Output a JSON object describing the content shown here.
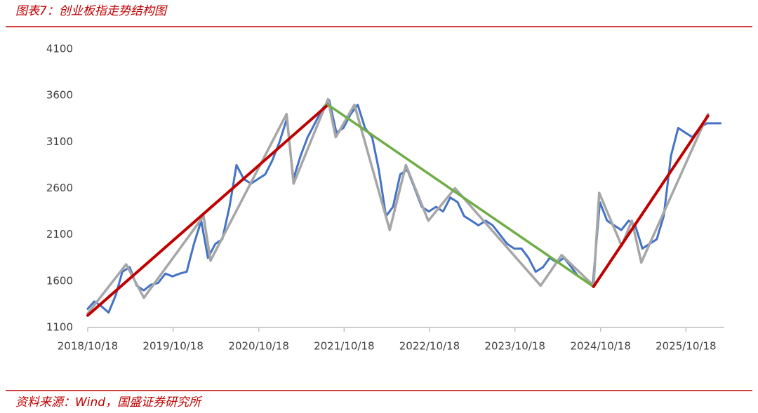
{
  "chart_data": {
    "type": "line",
    "title": "图表7：创业板指走势结构图",
    "source": "资料来源：Wind，国盛证券研究所",
    "xlim": [
      "2018/10/18",
      "2026/03/31"
    ],
    "xticks": [
      "2018/10/18",
      "2019/10/18",
      "2020/10/18",
      "2021/10/18",
      "2022/10/18",
      "2023/10/18",
      "2024/10/18",
      "2025/10/18"
    ],
    "ylim": [
      1100,
      4100
    ],
    "yticks": [
      1100,
      1600,
      2100,
      2600,
      3100,
      3600,
      4100
    ],
    "grid": false,
    "series": [
      {
        "color": "#4472c4",
        "width": 3,
        "x": [
          "2018/10/18",
          "2018/11/15",
          "2018/12/15",
          "2019/01/15",
          "2019/02/15",
          "2019/03/15",
          "2019/04/15",
          "2019/05/15",
          "2019/06/15",
          "2019/07/15",
          "2019/08/15",
          "2019/09/15",
          "2019/10/15",
          "2019/11/15",
          "2019/12/15",
          "2020/01/15",
          "2020/02/15",
          "2020/03/15",
          "2020/04/15",
          "2020/05/15",
          "2020/06/15",
          "2020/07/15",
          "2020/08/15",
          "2020/09/15",
          "2020/10/15",
          "2020/11/15",
          "2020/12/15",
          "2021/01/15",
          "2021/02/15",
          "2021/03/15",
          "2021/04/15",
          "2021/05/15",
          "2021/06/15",
          "2021/07/15",
          "2021/08/15",
          "2021/09/15",
          "2021/10/15",
          "2021/11/15",
          "2021/12/15",
          "2022/01/15",
          "2022/02/15",
          "2022/03/15",
          "2022/04/15",
          "2022/05/15",
          "2022/06/15",
          "2022/07/15",
          "2022/08/15",
          "2022/09/15",
          "2022/10/15",
          "2022/11/15",
          "2022/12/15",
          "2023/01/15",
          "2023/02/15",
          "2023/03/15",
          "2023/04/15",
          "2023/05/15",
          "2023/06/15",
          "2023/07/15",
          "2023/08/15",
          "2023/09/15",
          "2023/10/15",
          "2023/11/15",
          "2023/12/15",
          "2024/01/15",
          "2024/02/15",
          "2024/03/15",
          "2024/04/15",
          "2024/05/15",
          "2024/06/15",
          "2024/07/15",
          "2024/08/15",
          "2024/09/15",
          "2024/10/15",
          "2024/11/15",
          "2024/12/15",
          "2025/01/15",
          "2025/02/15",
          "2025/03/15",
          "2025/04/15",
          "2025/05/15",
          "2025/06/15",
          "2025/07/15",
          "2025/08/15",
          "2025/09/15",
          "2025/10/15",
          "2025/11/15",
          "2025/12/15",
          "2026/01/15",
          "2026/02/15",
          "2026/03/15"
        ],
        "values": [
          1300,
          1380,
          1330,
          1260,
          1450,
          1700,
          1750,
          1550,
          1500,
          1560,
          1580,
          1680,
          1650,
          1680,
          1700,
          2000,
          2250,
          1850,
          2000,
          2050,
          2400,
          2850,
          2700,
          2650,
          2700,
          2750,
          2900,
          3100,
          3350,
          2700,
          2950,
          3150,
          3300,
          3450,
          3550,
          3200,
          3250,
          3400,
          3500,
          3250,
          3150,
          2800,
          2300,
          2400,
          2750,
          2800,
          2600,
          2400,
          2350,
          2400,
          2350,
          2500,
          2450,
          2300,
          2250,
          2200,
          2250,
          2200,
          2100,
          2000,
          1950,
          1950,
          1850,
          1700,
          1750,
          1850,
          1800,
          1850,
          1750,
          1650,
          1600,
          1570,
          2450,
          2250,
          2200,
          2150,
          2250,
          2200,
          1950,
          2000,
          2050,
          2300,
          2950,
          3250,
          3200,
          3150,
          3250,
          3300,
          3300,
          3300
        ]
      },
      {
        "color": "#a6a6a6",
        "width": 3.5,
        "x": [
          "2018/10/18",
          "2019/03/31",
          "2019/06/15",
          "2020/02/25",
          "2020/03/26",
          "2021/02/14",
          "2021/03/16",
          "2021/08/10",
          "2021/09/12",
          "2021/12/01",
          "2022/05/01",
          "2022/07/09",
          "2022/10/13",
          "2023/02/04",
          "2024/02/05",
          "2024/05/05",
          "2024/09/18",
          "2024/10/12",
          "2025/01/16",
          "2025/03/01",
          "2025/04/10",
          "2026/01/20"
        ],
        "values": [
          1250,
          1780,
          1420,
          2300,
          1820,
          3400,
          2650,
          3560,
          3150,
          3500,
          2150,
          2850,
          2250,
          2600,
          1550,
          1880,
          1550,
          2550,
          1980,
          2250,
          1800,
          3400
        ]
      },
      {
        "color": "#c00000",
        "width": 4,
        "x": [
          "2018/10/18",
          "2021/08/10"
        ],
        "values": [
          1230,
          3500
        ]
      },
      {
        "color": "#70ad47",
        "width": 3.5,
        "x": [
          "2021/08/10",
          "2024/09/18"
        ],
        "values": [
          3500,
          1540
        ]
      },
      {
        "color": "#c00000",
        "width": 4,
        "x": [
          "2024/09/18",
          "2026/01/20"
        ],
        "values": [
          1540,
          3380
        ]
      }
    ]
  }
}
